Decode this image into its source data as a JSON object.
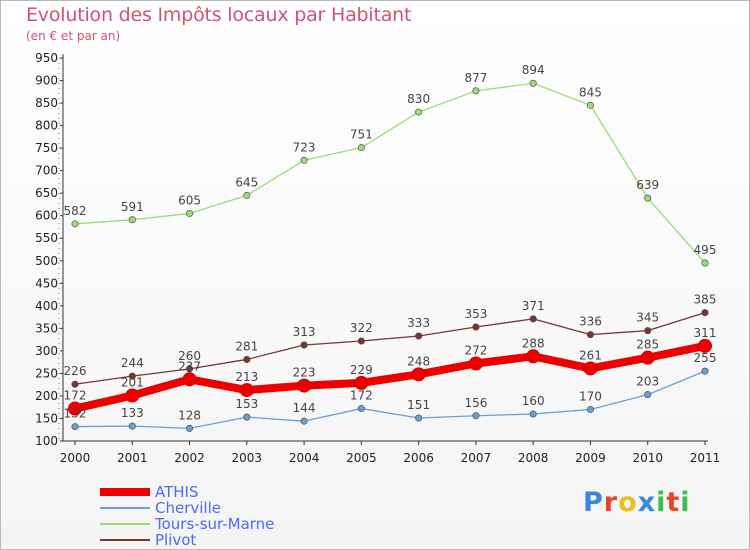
{
  "header": {
    "title": "Evolution des Impôts locaux par Habitant",
    "subtitle": "(en € et par an)"
  },
  "logo": {
    "text": "Proxiti",
    "colors": [
      "#3a86d8",
      "#e8442a",
      "#e8c020",
      "#3a86d8",
      "#3fbf4a",
      "#e8442a",
      "#3fbf4a"
    ]
  },
  "chart_data": {
    "type": "line",
    "x": [
      "2000",
      "2001",
      "2002",
      "2003",
      "2004",
      "2005",
      "2006",
      "2007",
      "2008",
      "2009",
      "2010",
      "2011"
    ],
    "ylim": [
      100,
      950
    ],
    "yticks": [
      100,
      150,
      200,
      250,
      300,
      350,
      400,
      450,
      500,
      550,
      600,
      650,
      700,
      750,
      800,
      850,
      900,
      950
    ],
    "grid": false,
    "legend": "bottom-left",
    "series": [
      {
        "name": "ATHIS",
        "color": "#ee0000",
        "line_style": "thick",
        "values": [
          172,
          201,
          237,
          213,
          223,
          229,
          248,
          272,
          288,
          261,
          285,
          311
        ]
      },
      {
        "name": "Cherville",
        "color": "#6aa0d0",
        "line_style": "thin",
        "values": [
          132,
          133,
          128,
          153,
          144,
          172,
          151,
          156,
          160,
          170,
          203,
          255
        ]
      },
      {
        "name": "Tours-sur-Marne",
        "color": "#99dd77",
        "line_style": "thin",
        "values": [
          582,
          591,
          605,
          645,
          723,
          751,
          830,
          877,
          894,
          845,
          639,
          495
        ]
      },
      {
        "name": "Plivot",
        "color": "#7a3535",
        "line_style": "thin",
        "values": [
          226,
          244,
          260,
          281,
          313,
          322,
          333,
          353,
          371,
          336,
          345,
          385
        ]
      }
    ]
  }
}
